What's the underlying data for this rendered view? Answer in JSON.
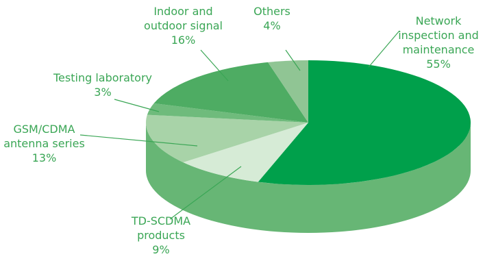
{
  "chart_data": {
    "type": "pie",
    "categories": [
      "Network inspection and maintenance",
      "TD-SCDMA products",
      "GSM/CDMA antenna series",
      "Testing laboratory",
      "Indoor and outdoor signal",
      "Others"
    ],
    "values": [
      55,
      9,
      13,
      3,
      16,
      4
    ],
    "value_labels": [
      "55%",
      "9%",
      "13%",
      "3%",
      "16%",
      "4%"
    ],
    "colors": [
      "#00a04b",
      "#d6ebd6",
      "#a8d3a8",
      "#6fbb7c",
      "#4eac63",
      "#90c594"
    ]
  }
}
